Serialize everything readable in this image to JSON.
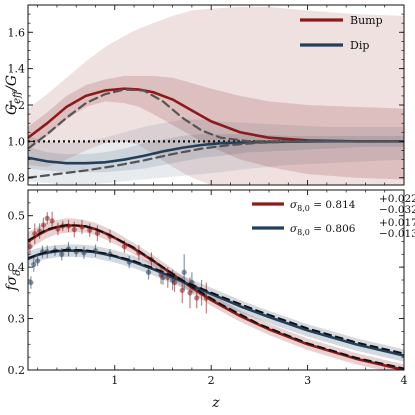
{
  "chart_data": [
    {
      "type": "line",
      "panel": "top",
      "ylabel": "G_eff/G",
      "ylabel_main": "G",
      "ylabel_sub": "eff",
      "ylabel_rest": "/G",
      "xlim": [
        0.1,
        4.0
      ],
      "ylim": [
        0.76,
        1.75
      ],
      "yticks": [
        0.8,
        1.0,
        1.2,
        1.4,
        1.6
      ],
      "ytick_labels": [
        "0.8",
        "1.0",
        "1.2",
        "1.4",
        "1.6"
      ],
      "grid": false,
      "legend_position": "top-right",
      "reference_line": {
        "y": 1.0,
        "style": "dotted"
      },
      "series": [
        {
          "name": "Bump",
          "color": "#8b1a1a",
          "x": [
            0.1,
            0.3,
            0.5,
            0.7,
            0.9,
            1.1,
            1.25,
            1.4,
            1.6,
            1.8,
            2.0,
            2.3,
            2.6,
            3.0,
            3.5,
            4.0
          ],
          "y": [
            1.02,
            1.1,
            1.19,
            1.25,
            1.28,
            1.29,
            1.285,
            1.27,
            1.23,
            1.17,
            1.11,
            1.05,
            1.02,
            1.005,
            1.0,
            1.0
          ],
          "band_outer_upper": [
            1.18,
            1.26,
            1.35,
            1.44,
            1.52,
            1.58,
            1.62,
            1.65,
            1.69,
            1.72,
            1.73,
            1.74,
            1.74,
            1.72,
            1.7,
            1.69
          ],
          "band_outer_lower": [
            0.87,
            0.86,
            0.9,
            0.95,
            0.99,
            1.0,
            0.98,
            0.93,
            0.86,
            0.8,
            0.76,
            0.76,
            0.76,
            0.76,
            0.76,
            0.76
          ],
          "band_inner_upper": [
            1.08,
            1.16,
            1.25,
            1.31,
            1.34,
            1.36,
            1.36,
            1.36,
            1.35,
            1.32,
            1.29,
            1.25,
            1.22,
            1.2,
            1.19,
            1.18
          ],
          "band_inner_lower": [
            0.96,
            1.03,
            1.12,
            1.19,
            1.22,
            1.21,
            1.19,
            1.15,
            1.09,
            1.03,
            0.97,
            0.9,
            0.86,
            0.82,
            0.8,
            0.79
          ]
        },
        {
          "name": "Dip",
          "color": "#223f5c",
          "x": [
            0.1,
            0.3,
            0.5,
            0.7,
            0.9,
            1.1,
            1.3,
            1.5,
            1.7,
            1.9,
            2.1,
            2.4,
            2.8,
            3.2,
            3.6,
            4.0
          ],
          "y": [
            0.91,
            0.89,
            0.88,
            0.88,
            0.885,
            0.9,
            0.92,
            0.945,
            0.965,
            0.98,
            0.99,
            0.995,
            0.998,
            1.0,
            1.0,
            1.0
          ],
          "band_outer_upper": [
            1.03,
            1.0,
            0.99,
            1.0,
            1.02,
            1.05,
            1.08,
            1.1,
            1.12,
            1.12,
            1.11,
            1.1,
            1.09,
            1.08,
            1.08,
            1.08
          ],
          "band_outer_lower": [
            0.78,
            0.77,
            0.76,
            0.76,
            0.77,
            0.78,
            0.79,
            0.8,
            0.81,
            0.82,
            0.83,
            0.85,
            0.87,
            0.88,
            0.89,
            0.9
          ],
          "band_inner_upper": [
            0.97,
            0.94,
            0.93,
            0.93,
            0.94,
            0.96,
            0.99,
            1.01,
            1.03,
            1.04,
            1.04,
            1.04,
            1.03,
            1.03,
            1.03,
            1.03
          ],
          "band_inner_lower": [
            0.85,
            0.84,
            0.83,
            0.83,
            0.83,
            0.84,
            0.85,
            0.87,
            0.89,
            0.91,
            0.92,
            0.94,
            0.95,
            0.96,
            0.97,
            0.97
          ]
        },
        {
          "name": "",
          "color": "#555555",
          "style": "dashed",
          "x": [
            0.1,
            0.3,
            0.5,
            0.7,
            0.9,
            1.1,
            1.3,
            1.5,
            1.7,
            1.9,
            2.1,
            2.4,
            2.8,
            3.2,
            3.6,
            4.0
          ],
          "y": [
            0.96,
            1.04,
            1.13,
            1.21,
            1.26,
            1.285,
            1.28,
            1.22,
            1.13,
            1.06,
            1.02,
            1.0,
            1.0,
            1.0,
            1.0,
            1.0
          ]
        },
        {
          "name": "",
          "color": "#555555",
          "style": "dashed",
          "x": [
            0.1,
            0.4,
            0.7,
            1.0,
            1.3,
            1.6,
            1.9,
            2.2,
            2.5,
            2.8,
            3.2,
            3.6,
            4.0
          ],
          "y": [
            0.8,
            0.82,
            0.84,
            0.865,
            0.895,
            0.93,
            0.96,
            0.98,
            0.992,
            0.998,
            1.0,
            1.0,
            1.0
          ]
        }
      ]
    },
    {
      "type": "line",
      "panel": "bottom",
      "xlabel": "z",
      "ylabel": "fσ8",
      "ylabel_main": "fσ",
      "ylabel_sub": "8",
      "xlim": [
        0.1,
        4.0
      ],
      "ylim": [
        0.2,
        0.55
      ],
      "xticks": [
        1,
        2,
        3,
        4
      ],
      "xtick_labels": [
        "1",
        "2",
        "3",
        "4"
      ],
      "yticks": [
        0.2,
        0.3,
        0.4,
        0.5
      ],
      "ytick_labels": [
        "0.2",
        "0.3",
        "0.4",
        "0.5"
      ],
      "grid": false,
      "legend_position": "top-right",
      "legend": [
        {
          "main": "σ",
          "sub": "8,0",
          "equals": " = 0.814",
          "sup": "+0.022",
          "sub2": "−0.032",
          "color": "#8b1a1a"
        },
        {
          "main": "σ",
          "sub": "8,0",
          "equals": " = 0.806",
          "sup": "+0.017",
          "sub2": "−0.013",
          "color": "#223f5c"
        }
      ],
      "series": [
        {
          "name": "Bump",
          "color": "#8b1a1a",
          "x": [
            0.1,
            0.2,
            0.3,
            0.4,
            0.5,
            0.6,
            0.7,
            0.8,
            0.9,
            1.0,
            1.2,
            1.4,
            1.6,
            1.8,
            2.0,
            2.3,
            2.6,
            3.0,
            3.5,
            4.0
          ],
          "y": [
            0.45,
            0.462,
            0.472,
            0.478,
            0.481,
            0.481,
            0.479,
            0.474,
            0.466,
            0.457,
            0.436,
            0.412,
            0.386,
            0.36,
            0.336,
            0.305,
            0.279,
            0.25,
            0.222,
            0.2
          ],
          "band_upper": [
            0.468,
            0.478,
            0.487,
            0.492,
            0.495,
            0.494,
            0.491,
            0.486,
            0.478,
            0.469,
            0.447,
            0.423,
            0.397,
            0.371,
            0.347,
            0.316,
            0.29,
            0.261,
            0.233,
            0.211
          ],
          "band_lower": [
            0.432,
            0.446,
            0.457,
            0.464,
            0.467,
            0.468,
            0.467,
            0.462,
            0.454,
            0.445,
            0.425,
            0.401,
            0.375,
            0.349,
            0.325,
            0.294,
            0.268,
            0.239,
            0.211,
            0.19
          ],
          "points": [
            {
              "x": 0.12,
              "y": 0.44,
              "err": 0.014
            },
            {
              "x": 0.17,
              "y": 0.465,
              "err": 0.02
            },
            {
              "x": 0.22,
              "y": 0.47,
              "err": 0.015
            },
            {
              "x": 0.26,
              "y": 0.482,
              "err": 0.014
            },
            {
              "x": 0.3,
              "y": 0.495,
              "err": 0.012
            },
            {
              "x": 0.35,
              "y": 0.49,
              "err": 0.018
            },
            {
              "x": 0.41,
              "y": 0.474,
              "err": 0.012
            },
            {
              "x": 0.46,
              "y": 0.48,
              "err": 0.01
            },
            {
              "x": 0.52,
              "y": 0.48,
              "err": 0.012
            },
            {
              "x": 0.58,
              "y": 0.473,
              "err": 0.015
            },
            {
              "x": 0.66,
              "y": 0.478,
              "err": 0.014
            },
            {
              "x": 0.74,
              "y": 0.472,
              "err": 0.013
            },
            {
              "x": 0.82,
              "y": 0.466,
              "err": 0.015
            },
            {
              "x": 0.95,
              "y": 0.46,
              "err": 0.013
            },
            {
              "x": 1.1,
              "y": 0.44,
              "err": 0.012
            },
            {
              "x": 1.25,
              "y": 0.428,
              "err": 0.015
            },
            {
              "x": 1.38,
              "y": 0.415,
              "err": 0.014
            },
            {
              "x": 1.48,
              "y": 0.385,
              "err": 0.018
            },
            {
              "x": 1.55,
              "y": 0.38,
              "err": 0.02
            },
            {
              "x": 1.62,
              "y": 0.37,
              "err": 0.018
            },
            {
              "x": 1.7,
              "y": 0.355,
              "err": 0.025
            },
            {
              "x": 1.78,
              "y": 0.35,
              "err": 0.03
            },
            {
              "x": 1.85,
              "y": 0.34,
              "err": 0.02
            },
            {
              "x": 1.95,
              "y": 0.34,
              "err": 0.03
            }
          ]
        },
        {
          "name": "Dip",
          "color": "#223f5c",
          "x": [
            0.1,
            0.2,
            0.3,
            0.4,
            0.5,
            0.6,
            0.7,
            0.8,
            0.9,
            1.0,
            1.2,
            1.4,
            1.6,
            1.8,
            2.0,
            2.3,
            2.6,
            3.0,
            3.5,
            4.0
          ],
          "y": [
            0.416,
            0.424,
            0.428,
            0.431,
            0.432,
            0.432,
            0.431,
            0.429,
            0.425,
            0.421,
            0.41,
            0.396,
            0.38,
            0.364,
            0.348,
            0.324,
            0.303,
            0.277,
            0.25,
            0.228
          ],
          "band_upper": [
            0.43,
            0.437,
            0.44,
            0.443,
            0.444,
            0.444,
            0.443,
            0.441,
            0.437,
            0.433,
            0.422,
            0.408,
            0.392,
            0.376,
            0.36,
            0.336,
            0.315,
            0.289,
            0.262,
            0.24
          ],
          "band_lower": [
            0.402,
            0.411,
            0.416,
            0.419,
            0.42,
            0.42,
            0.419,
            0.417,
            0.413,
            0.409,
            0.398,
            0.384,
            0.368,
            0.352,
            0.336,
            0.312,
            0.291,
            0.265,
            0.238,
            0.216
          ],
          "points": [
            {
              "x": 0.13,
              "y": 0.37,
              "err": 0.012
            },
            {
              "x": 0.16,
              "y": 0.405,
              "err": 0.014
            },
            {
              "x": 0.2,
              "y": 0.412,
              "err": 0.01
            },
            {
              "x": 0.25,
              "y": 0.43,
              "err": 0.012
            },
            {
              "x": 0.3,
              "y": 0.43,
              "err": 0.012
            },
            {
              "x": 0.38,
              "y": 0.432,
              "err": 0.01
            },
            {
              "x": 0.45,
              "y": 0.425,
              "err": 0.012
            },
            {
              "x": 0.52,
              "y": 0.435,
              "err": 0.014
            },
            {
              "x": 0.6,
              "y": 0.43,
              "err": 0.01
            },
            {
              "x": 0.68,
              "y": 0.428,
              "err": 0.012
            },
            {
              "x": 0.8,
              "y": 0.432,
              "err": 0.012
            },
            {
              "x": 0.95,
              "y": 0.425,
              "err": 0.01
            },
            {
              "x": 1.15,
              "y": 0.41,
              "err": 0.012
            },
            {
              "x": 1.35,
              "y": 0.39,
              "err": 0.014
            },
            {
              "x": 1.5,
              "y": 0.38,
              "err": 0.014
            },
            {
              "x": 1.6,
              "y": 0.375,
              "err": 0.02
            },
            {
              "x": 1.72,
              "y": 0.39,
              "err": 0.035
            },
            {
              "x": 1.8,
              "y": 0.37,
              "err": 0.02
            },
            {
              "x": 1.9,
              "y": 0.35,
              "err": 0.025
            }
          ]
        },
        {
          "name": "",
          "color": "#111111",
          "style": "dashed",
          "x": [
            0.1,
            0.3,
            0.5,
            0.7,
            0.9,
            1.2,
            1.5,
            1.8,
            2.1,
            2.5,
            3.0,
            3.5,
            4.0
          ],
          "y": [
            0.452,
            0.474,
            0.482,
            0.48,
            0.467,
            0.438,
            0.4,
            0.362,
            0.328,
            0.289,
            0.252,
            0.224,
            0.203
          ]
        },
        {
          "name": "",
          "color": "#111111",
          "style": "dashed",
          "x": [
            0.1,
            0.3,
            0.5,
            0.7,
            0.9,
            1.2,
            1.5,
            1.8,
            2.1,
            2.5,
            3.0,
            3.5,
            4.0
          ],
          "y": [
            0.418,
            0.43,
            0.434,
            0.433,
            0.427,
            0.412,
            0.391,
            0.366,
            0.343,
            0.314,
            0.281,
            0.254,
            0.232
          ]
        }
      ]
    }
  ]
}
